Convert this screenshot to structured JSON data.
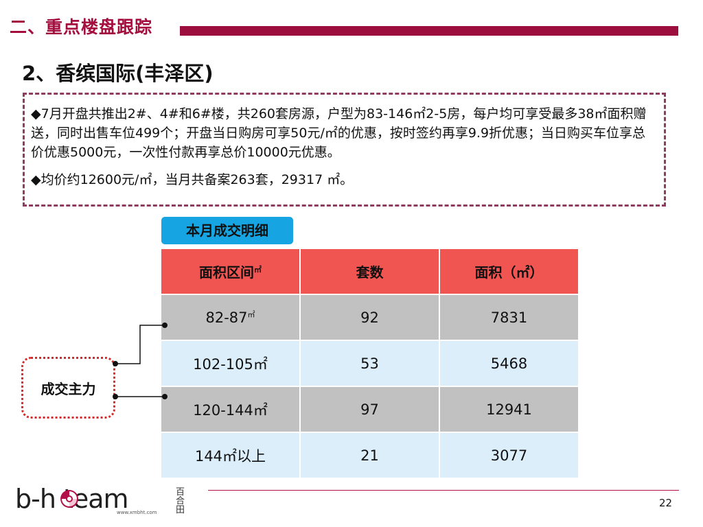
{
  "header": {
    "section_title": "二、重点楼盘跟踪",
    "subtitle": "2、香缤国际(丰泽区)"
  },
  "info": {
    "paragraph1": "◆7月开盘共推出2#、4#和6#楼，共260套房源，户型为83-146㎡2-5房，每户均可享受最多38㎡面积赠送，同时出售车位499个；开盘当日购房可享50元/㎡的优惠，按时签约再享9.9折优惠；当日购买车位享总价优惠5000元，一次性付款再享总价10000元优惠。",
    "paragraph2": "◆均价约12600元/㎡，当月共备案263套，29317 ㎡。"
  },
  "table": {
    "tab_label": "本月成交明细",
    "headers": {
      "area_range": "面积区间",
      "area_range_unit": "㎡",
      "units": "套数",
      "area": "面积（㎡）"
    },
    "rows": [
      {
        "range": "82-87",
        "range_unit": "㎡",
        "units": "92",
        "area": "7831"
      },
      {
        "range": "102-105㎡",
        "units": "53",
        "area": "5468"
      },
      {
        "range": "120-144㎡",
        "units": "97",
        "area": "12941"
      },
      {
        "range": "144㎡以上",
        "units": "21",
        "area": "3077"
      }
    ]
  },
  "callout": {
    "label": "成交主力"
  },
  "footer": {
    "logo_text": "b-h  team",
    "logo_url": "www.xmbht.com",
    "logo_cn": "百合田",
    "page_number": "22"
  },
  "colors": {
    "brand": "#9b0e3e",
    "table_header": "#f05552",
    "row_gray": "#c1c1c1",
    "row_blue": "#dceefa",
    "tab_blue": "#16a4e2",
    "callout_border": "#d92a2a"
  }
}
